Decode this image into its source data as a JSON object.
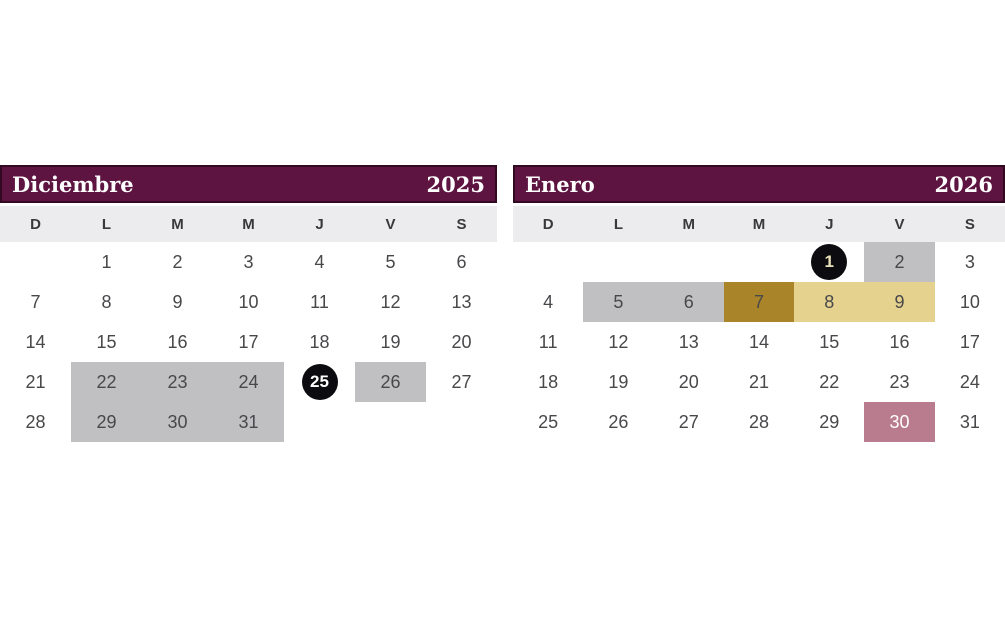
{
  "page": {
    "background": "#ffffff"
  },
  "colors": {
    "header_bg": "#5e1440",
    "header_border": "#310a22",
    "header_text": "#ffffff",
    "dayrow_bg": "#ececee",
    "dayhead_text": "#39393b",
    "num_text": "#48484b",
    "hl_gray": "#c0bfc1",
    "hl_gold_dark": "#aa8428",
    "hl_gold_light": "#e5d28e",
    "hl_pink": "#b97b8e",
    "circle_bg": "#0c0c10",
    "circle_text_white": "#ffffff",
    "circle_text_cream": "#eae2ba"
  },
  "calendars": [
    {
      "name": "diciembre-2025",
      "month": "Diciembre",
      "year": "2025",
      "day_headers": [
        "D",
        "L",
        "M",
        "M",
        "J",
        "V",
        "S"
      ],
      "weeks": [
        [
          "",
          "1",
          "2",
          "3",
          "4",
          "5",
          "6"
        ],
        [
          "7",
          "8",
          "9",
          "10",
          "11",
          "12",
          "13"
        ],
        [
          "14",
          "15",
          "16",
          "17",
          "18",
          "19",
          "20"
        ],
        [
          "21",
          "22",
          "23",
          "24",
          "25",
          "26",
          "27"
        ],
        [
          "28",
          "29",
          "30",
          "31",
          "",
          "",
          ""
        ]
      ],
      "highlights": {
        "22": "gray",
        "23": "gray",
        "24": "gray",
        "25": "circle-white",
        "26": "gray",
        "29": "gray",
        "30": "gray",
        "31": "gray"
      }
    },
    {
      "name": "enero-2026",
      "month": "Enero",
      "year": "2026",
      "day_headers": [
        "D",
        "L",
        "M",
        "M",
        "J",
        "V",
        "S"
      ],
      "weeks": [
        [
          "",
          "",
          "",
          "",
          "1",
          "2",
          "3"
        ],
        [
          "4",
          "5",
          "6",
          "7",
          "8",
          "9",
          "10"
        ],
        [
          "11",
          "12",
          "13",
          "14",
          "15",
          "16",
          "17"
        ],
        [
          "18",
          "19",
          "20",
          "21",
          "22",
          "23",
          "24"
        ],
        [
          "25",
          "26",
          "27",
          "28",
          "29",
          "30",
          "31"
        ]
      ],
      "highlights": {
        "1": "circle-cream",
        "2": "gray",
        "5": "gray",
        "6": "gray",
        "7": "gold-dark",
        "8": "gold-light",
        "9": "gold-light",
        "30": "pink"
      }
    }
  ]
}
